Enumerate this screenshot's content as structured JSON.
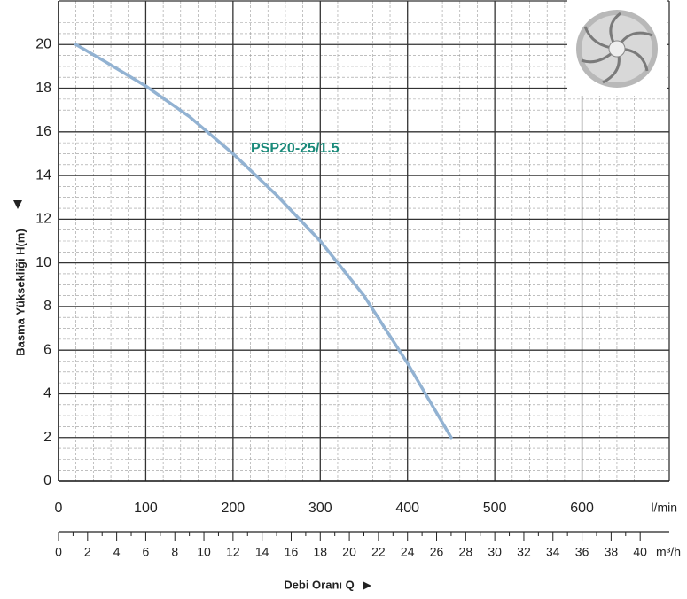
{
  "chart_data": {
    "type": "line",
    "series_label_color": "#1a8a7a",
    "x": [
      20,
      50,
      100,
      150,
      200,
      250,
      300,
      350,
      400,
      425,
      450
    ],
    "series": [
      {
        "name": "PSP20-25/1.5",
        "color": "#92b2d2",
        "values": [
          20,
          19.3,
          18.1,
          16.7,
          15.0,
          13.1,
          11.0,
          8.5,
          5.4,
          3.7,
          2.0
        ]
      }
    ],
    "xlim": [
      0,
      700
    ],
    "xticks": [
      0,
      100,
      200,
      300,
      400,
      500,
      600
    ],
    "x_unit": "l/min",
    "x2lim": [
      0,
      42
    ],
    "x2ticks": [
      0,
      2,
      4,
      6,
      8,
      10,
      12,
      14,
      16,
      18,
      20,
      22,
      24,
      26,
      28,
      30,
      32,
      34,
      36,
      38,
      40
    ],
    "x2_unit": "m³/h",
    "ylim": [
      0,
      22
    ],
    "yticks": [
      0,
      2,
      4,
      6,
      8,
      10,
      12,
      14,
      16,
      18,
      20
    ],
    "y_label": "Basma Yüksekliği H(m)",
    "x_label": "Debi Oranı Q",
    "grid": true
  }
}
